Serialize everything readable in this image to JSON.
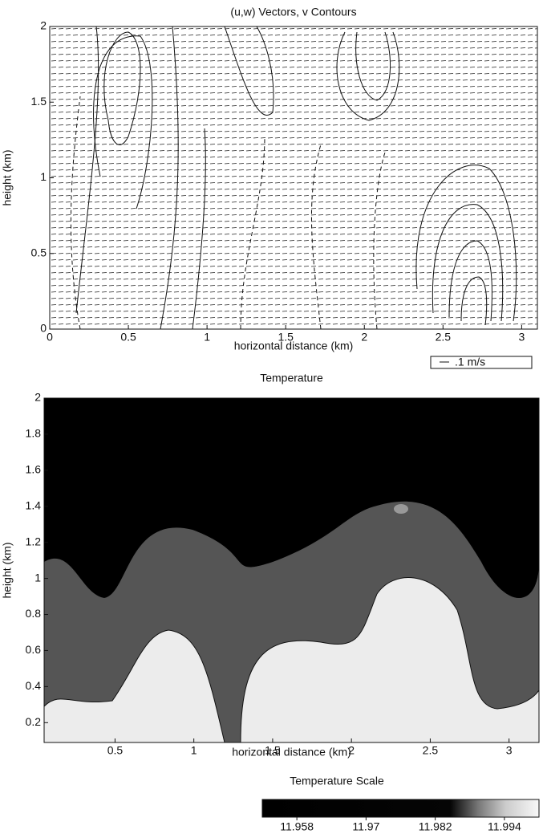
{
  "chart_data": [
    {
      "type": "vector",
      "title": "(u,w) Vectors, v Contours",
      "xlabel": "horizontal distance (km)",
      "ylabel": "height (km)",
      "xlim": [
        0,
        3.1
      ],
      "ylim": [
        0,
        2
      ],
      "xticks": [
        0,
        0.5,
        1,
        1.5,
        2,
        2.5,
        3
      ],
      "yticks": [
        0,
        0.5,
        1,
        1.5,
        2
      ],
      "annotation": ".1 m/s"
    },
    {
      "type": "heatmap",
      "title": "Temperature",
      "xlabel": "horizontal distance (km)",
      "ylabel": "height (km)",
      "xlim": [
        0.05,
        3.19
      ],
      "ylim": [
        0.09,
        2
      ],
      "xticks": [
        0.5,
        1,
        1.5,
        2,
        2.5,
        3
      ],
      "yticks": [
        0.2,
        0.4,
        0.6,
        0.8,
        1,
        1.2,
        1.4,
        1.6,
        1.8,
        2
      ],
      "colorbar": {
        "title": "Temperature Scale",
        "lim": [
          11.952,
          12.0
        ],
        "ticks": [
          11.958,
          11.97,
          11.982,
          11.994
        ]
      }
    }
  ]
}
